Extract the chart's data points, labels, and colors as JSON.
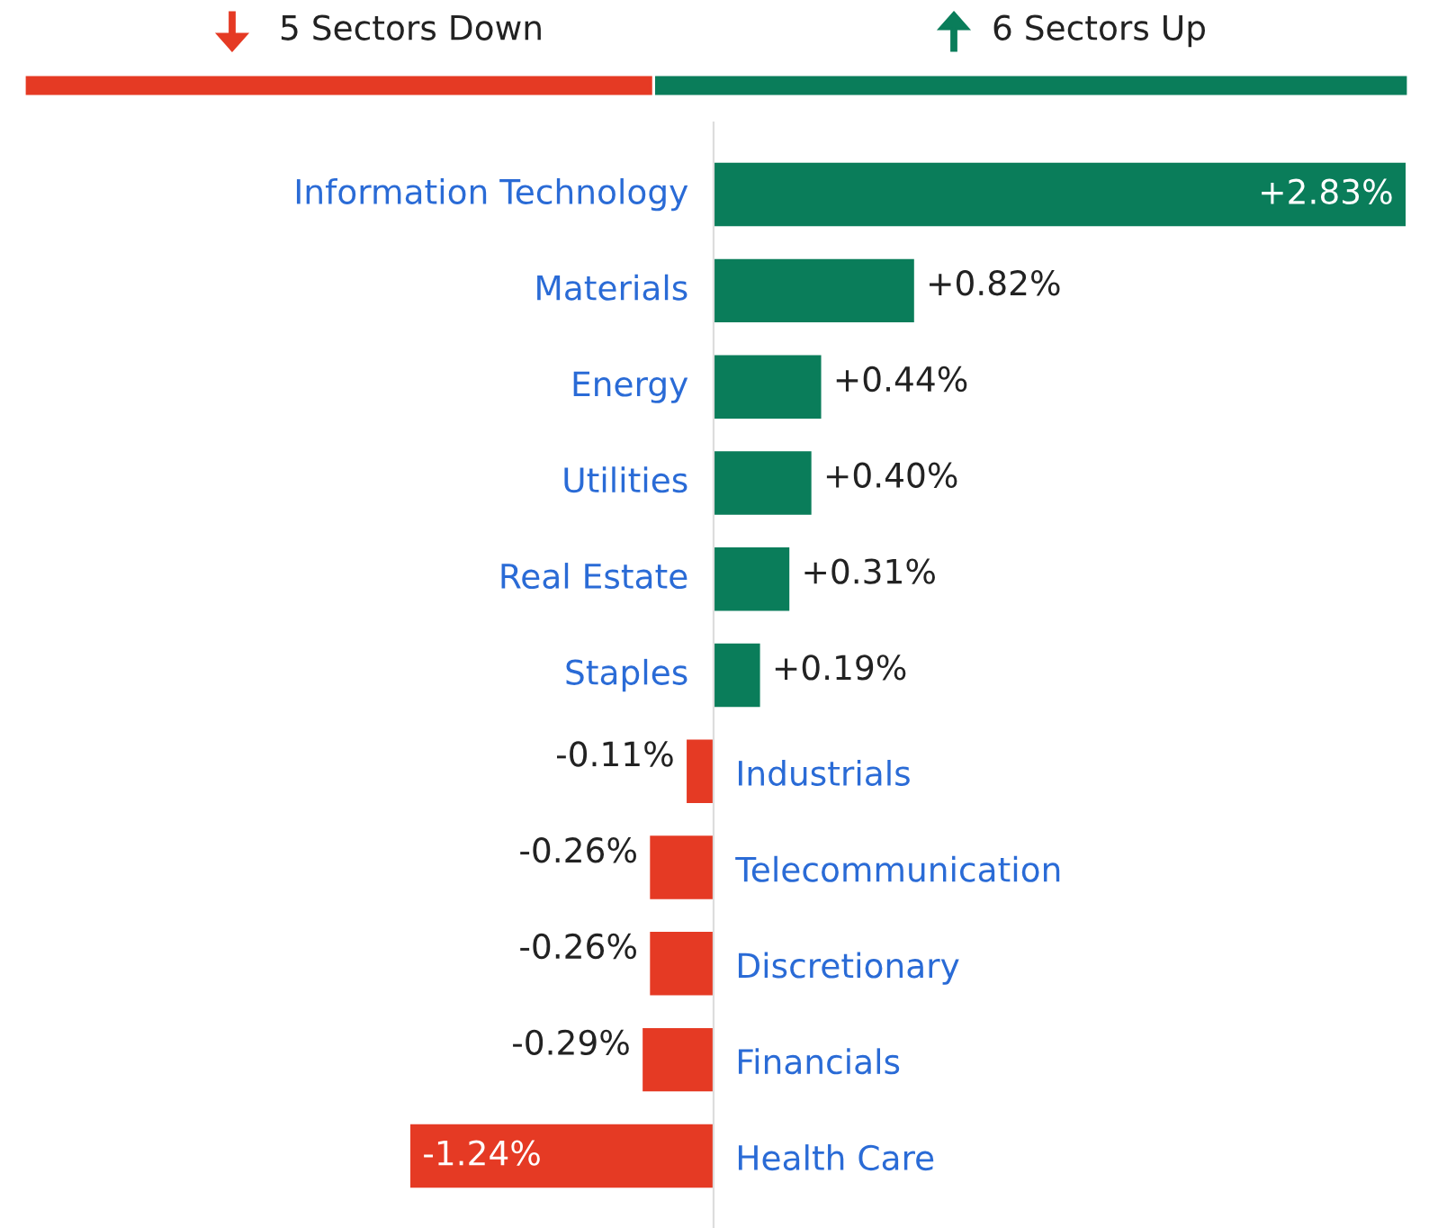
{
  "chart_data": {
    "type": "bar",
    "orientation": "horizontal",
    "categories": [
      "Information Technology",
      "Materials",
      "Energy",
      "Utilities",
      "Real Estate",
      "Staples",
      "Industrials",
      "Telecommunication",
      "Discretionary",
      "Financials",
      "Health Care"
    ],
    "values": [
      2.83,
      0.82,
      0.44,
      0.4,
      0.31,
      0.19,
      -0.11,
      -0.26,
      -0.26,
      -0.29,
      -1.24
    ],
    "colors": [
      "#0a7d5a",
      "#0a7d5a",
      "#0a7d5a",
      "#0a7d5a",
      "#0a7d5a",
      "#0a7d5a",
      "#e53a24",
      "#e53a24",
      "#e53a24",
      "#e53a24",
      "#e53a24"
    ],
    "value_labels": [
      "+2.83%",
      "+0.82%",
      "+0.44%",
      "+0.40%",
      "+0.31%",
      "+0.19%",
      "-0.11%",
      "-0.26%",
      "-0.26%",
      "-0.29%",
      "-1.24%"
    ],
    "annotations": [
      "5 Sectors Down",
      "6 Sectors Up"
    ]
  }
}
